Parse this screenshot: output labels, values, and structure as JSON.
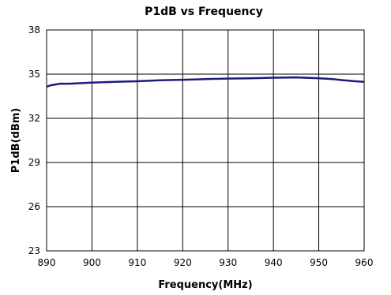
{
  "chart_data": {
    "type": "line",
    "title": "P1dB vs Frequency",
    "xlabel": "Frequency(MHz)",
    "ylabel": "P1dB(dBm)",
    "xlim": [
      890,
      960
    ],
    "ylim": [
      23,
      38
    ],
    "xticks": [
      890,
      900,
      910,
      920,
      930,
      940,
      950,
      960
    ],
    "yticks": [
      23,
      26,
      29,
      32,
      35,
      38
    ],
    "grid": true,
    "line_color": "#1a1a80",
    "series": [
      {
        "x": [
          890,
          891,
          893,
          895,
          900,
          905,
          910,
          915,
          920,
          925,
          930,
          935,
          940,
          945,
          948,
          950,
          953,
          955,
          958,
          960
        ],
        "values": [
          34.15,
          34.25,
          34.35,
          34.35,
          34.42,
          34.48,
          34.52,
          34.58,
          34.62,
          34.66,
          34.7,
          34.72,
          34.76,
          34.78,
          34.75,
          34.72,
          34.66,
          34.6,
          34.52,
          34.48
        ]
      }
    ]
  }
}
